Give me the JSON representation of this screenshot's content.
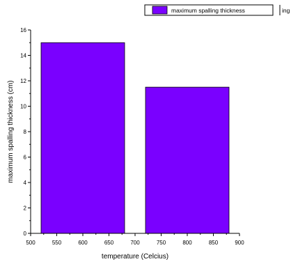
{
  "chart_data": {
    "type": "bar",
    "x": [
      600,
      800
    ],
    "values": [
      15.0,
      11.5
    ],
    "bar_width": 160,
    "xlim": [
      500,
      900
    ],
    "ylim": [
      0,
      16
    ],
    "x_ticks": [
      500,
      550,
      600,
      650,
      700,
      750,
      800,
      850,
      900
    ],
    "y_ticks": [
      0,
      2,
      4,
      6,
      8,
      10,
      12,
      14,
      16
    ],
    "xlabel": "temperature (Celcius)",
    "ylabel": "maximum spalling thickness (cm)",
    "series": [
      {
        "name": "maximum spalling thickness",
        "color": "#7a00ff"
      }
    ],
    "legend_position": "top-right",
    "legend_extra": "ing",
    "grid": false
  }
}
